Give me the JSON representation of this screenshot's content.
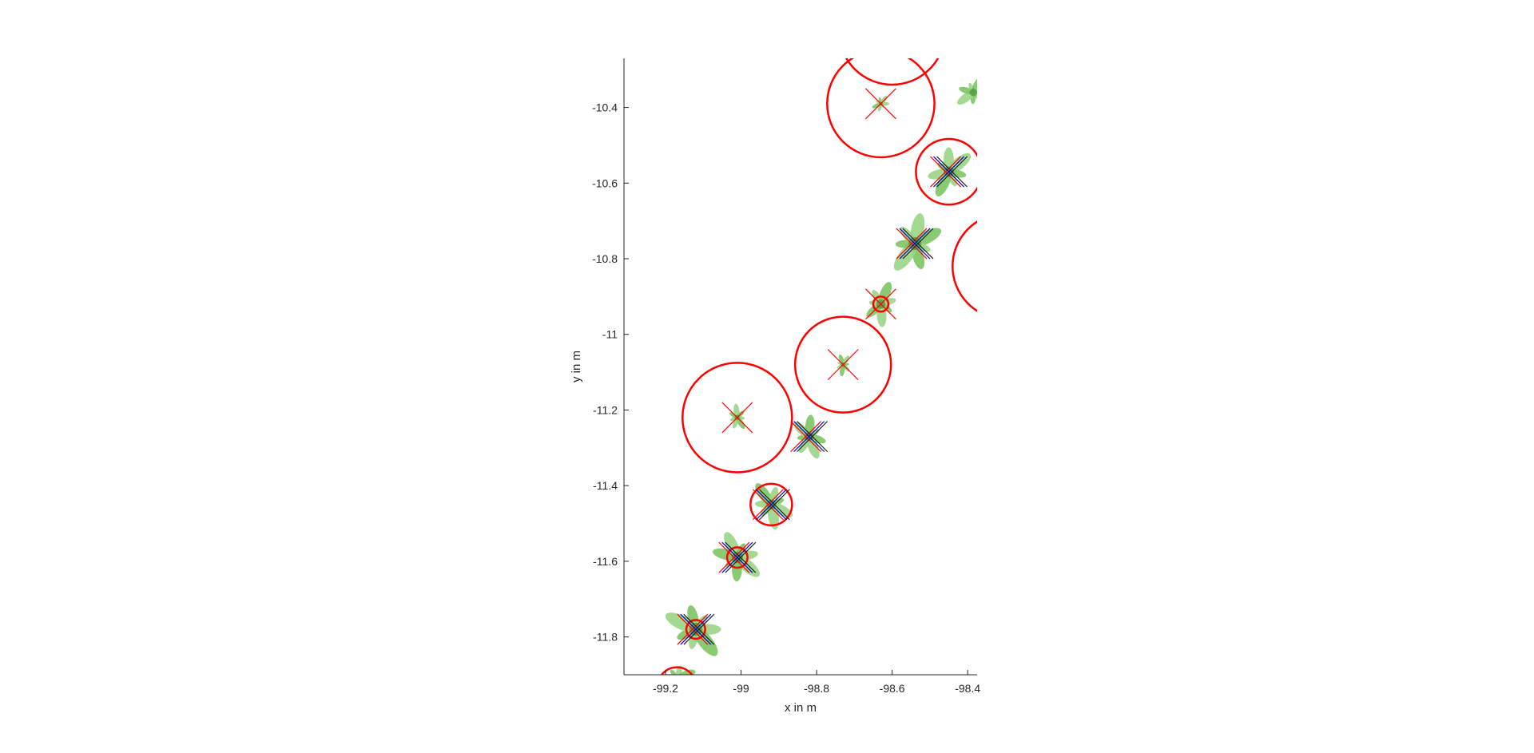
{
  "chart_data": {
    "type": "scatter",
    "title": "",
    "xlabel": "x in m",
    "ylabel": "y in m",
    "xlim": [
      -99.31,
      -98.375
    ],
    "ylim": [
      -11.9,
      -10.27
    ],
    "x_ticks": [
      -99.2,
      -99,
      -98.8,
      -98.6,
      -98.4
    ],
    "x_tick_labels": [
      "-99.2",
      "-99",
      "-98.8",
      "-98.6",
      "-98.4"
    ],
    "y_ticks": [
      -10.4,
      -10.6,
      -10.8,
      -11,
      -11.2,
      -11.4,
      -11.6,
      -11.8
    ],
    "y_tick_labels": [
      "-10.4",
      "-10.6",
      "-10.8",
      "-11",
      "-11.2",
      "-11.4",
      "-11.6",
      "-11.8"
    ],
    "grid": false,
    "colors": {
      "circle": "#ff0000",
      "cross_red": "#ff0000",
      "cross_blue": "#0000cc",
      "cross_dark": "#222222",
      "plant": "#7cc464",
      "plant_dark": "#4f9a3c",
      "axis": "#262626"
    },
    "plants": [
      {
        "x": -99.12,
        "y": -11.78,
        "size": 0.085
      },
      {
        "x": -99.01,
        "y": -11.59,
        "size": 0.075
      },
      {
        "x": -98.92,
        "y": -11.45,
        "size": 0.065
      },
      {
        "x": -98.82,
        "y": -11.27,
        "size": 0.06
      },
      {
        "x": -99.01,
        "y": -11.22,
        "size": 0.035
      },
      {
        "x": -98.73,
        "y": -11.08,
        "size": 0.03
      },
      {
        "x": -98.63,
        "y": -10.92,
        "size": 0.06
      },
      {
        "x": -98.54,
        "y": -10.76,
        "size": 0.085
      },
      {
        "x": -98.45,
        "y": -10.57,
        "size": 0.07
      },
      {
        "x": -98.63,
        "y": -10.39,
        "size": 0.025
      },
      {
        "x": -98.385,
        "y": -10.36,
        "size": 0.05
      },
      {
        "x": -99.17,
        "y": -11.91,
        "size": 0.05
      }
    ],
    "circles": [
      {
        "x": -99.17,
        "y": -11.93,
        "r": 0.05
      },
      {
        "x": -99.12,
        "y": -11.78,
        "r": 0.025
      },
      {
        "x": -99.01,
        "y": -11.59,
        "r": 0.027
      },
      {
        "x": -98.92,
        "y": -11.45,
        "r": 0.055
      },
      {
        "x": -99.01,
        "y": -11.22,
        "r": 0.145
      },
      {
        "x": -98.82,
        "y": -11.27,
        "r": 0.0
      },
      {
        "x": -98.73,
        "y": -11.08,
        "r": 0.127
      },
      {
        "x": -98.63,
        "y": -10.92,
        "r": 0.02
      },
      {
        "x": -98.54,
        "y": -10.76,
        "r": 0.0
      },
      {
        "x": -98.45,
        "y": -10.57,
        "r": 0.087
      },
      {
        "x": -98.63,
        "y": -10.39,
        "r": 0.142
      },
      {
        "x": -98.6,
        "y": -10.2,
        "r": 0.14
      },
      {
        "x": -98.3,
        "y": -10.82,
        "r": 0.14
      }
    ],
    "crosses": [
      {
        "x": -99.12,
        "y": -11.78,
        "colors": [
          "red",
          "blue",
          "dark"
        ]
      },
      {
        "x": -99.01,
        "y": -11.59,
        "colors": [
          "red",
          "blue",
          "dark"
        ]
      },
      {
        "x": -98.92,
        "y": -11.45,
        "colors": [
          "red",
          "blue",
          "dark"
        ]
      },
      {
        "x": -98.82,
        "y": -11.27,
        "colors": [
          "red",
          "blue",
          "dark"
        ]
      },
      {
        "x": -99.01,
        "y": -11.22,
        "colors": [
          "red"
        ]
      },
      {
        "x": -98.73,
        "y": -11.08,
        "colors": [
          "red"
        ]
      },
      {
        "x": -98.63,
        "y": -10.92,
        "colors": [
          "red"
        ]
      },
      {
        "x": -98.54,
        "y": -10.76,
        "colors": [
          "red",
          "blue",
          "dark"
        ]
      },
      {
        "x": -98.45,
        "y": -10.57,
        "colors": [
          "red",
          "blue",
          "dark"
        ]
      },
      {
        "x": -98.63,
        "y": -10.39,
        "colors": [
          "red"
        ]
      }
    ]
  }
}
